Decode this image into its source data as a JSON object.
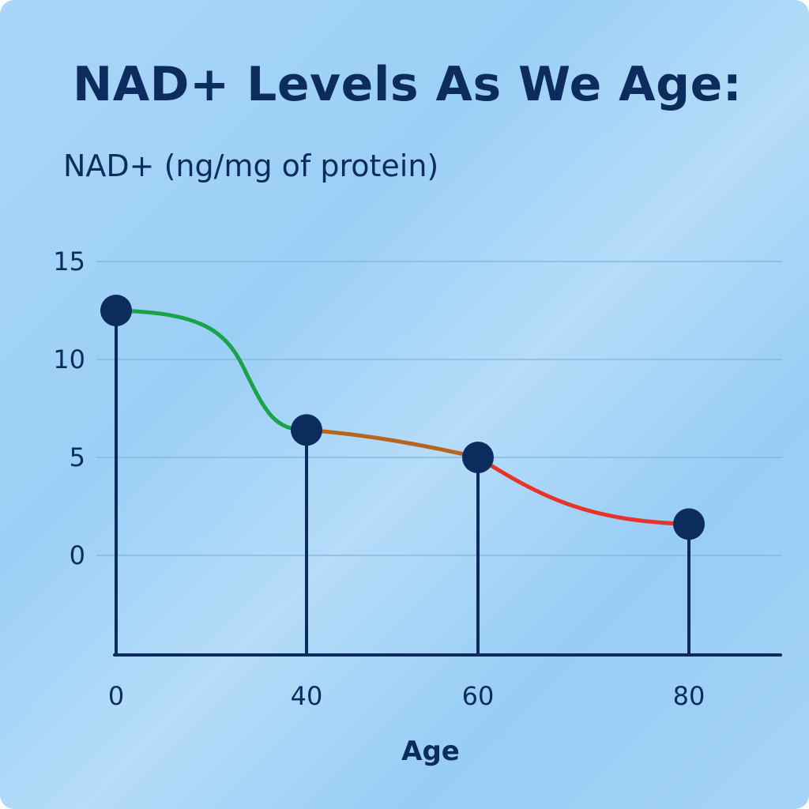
{
  "chart_data": {
    "type": "line",
    "title": "NAD+ Levels As We Age:",
    "ylabel": "NAD+ (ng/mg of protein)",
    "xlabel": "Age",
    "categories": [
      "0",
      "40",
      "60",
      "80"
    ],
    "x": [
      0,
      40,
      60,
      80
    ],
    "values": [
      12.5,
      6.4,
      5.0,
      1.6
    ],
    "yticks": [
      "15",
      "10",
      "5",
      "0"
    ],
    "ytick_values": [
      15,
      10,
      5,
      0
    ],
    "ylim": [
      -5,
      15
    ],
    "grid": true,
    "segment_colors": [
      "#1aa34a",
      "#b5651d",
      "#e8322a"
    ],
    "marker_color": "#0d2c5e",
    "text_color": "#0d2c5e"
  }
}
